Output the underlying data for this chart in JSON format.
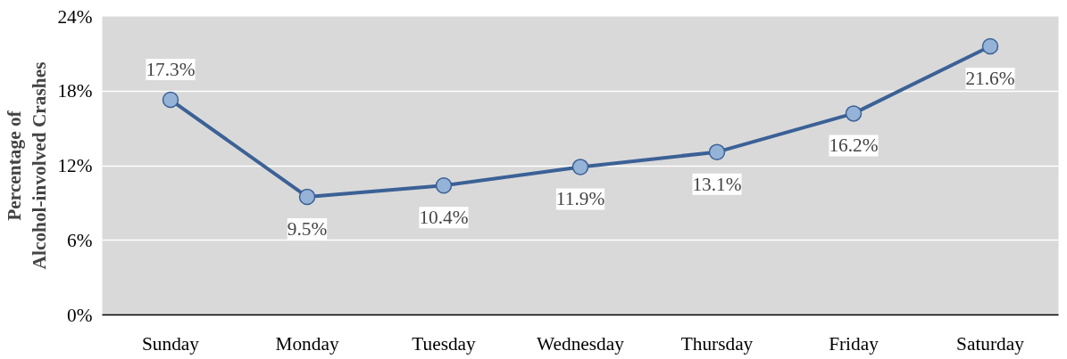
{
  "chart_data": {
    "type": "line",
    "ylabel": "Percentage of\nAlcohol-involved Crashes",
    "categories": [
      "Sunday",
      "Monday",
      "Tuesday",
      "Wednesday",
      "Thursday",
      "Friday",
      "Saturday"
    ],
    "series": [
      {
        "color": "#3b6196",
        "values": [
          17.3,
          9.5,
          10.4,
          11.9,
          13.1,
          16.2,
          21.6
        ],
        "value_labels": [
          "17.3%",
          "9.5%",
          "10.4%",
          "11.9%",
          "13.1%",
          "16.2%",
          "21.6%"
        ]
      }
    ],
    "marker": "circle",
    "ylim": [
      0,
      24
    ],
    "yticks": [
      {
        "value": 0,
        "label": "0%"
      },
      {
        "value": 6,
        "label": "6%"
      },
      {
        "value": 12,
        "label": "12%"
      },
      {
        "value": 18,
        "label": "18%"
      },
      {
        "value": 24,
        "label": "24%"
      }
    ],
    "grid": "y"
  }
}
